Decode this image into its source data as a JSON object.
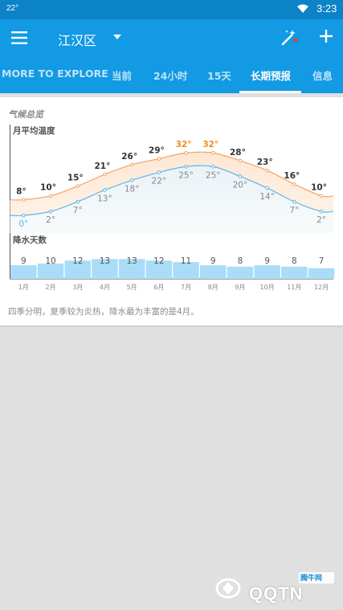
{
  "statusbar": {
    "temperature": "22°",
    "time": "3:23"
  },
  "appbar": {
    "city": "江汉区"
  },
  "tabs": [
    {
      "label": "MORE TO EXPLORE"
    },
    {
      "label": "当前"
    },
    {
      "label": "24小时"
    },
    {
      "label": "15天"
    },
    {
      "label": "长期预报",
      "active": true
    },
    {
      "label": "信息"
    }
  ],
  "card": {
    "title": "气候总览",
    "summary": "四季分明，夏季较为炎热，降水最为丰富的是4月。"
  },
  "chart_data": [
    {
      "type": "line",
      "title": "月平均温度",
      "categories": [
        "1月",
        "2月",
        "3月",
        "4月",
        "5月",
        "6月",
        "7月",
        "8月",
        "9月",
        "10月",
        "11月",
        "12月"
      ],
      "series": [
        {
          "values": [
            8,
            10,
            15,
            21,
            26,
            29,
            32,
            32,
            28,
            23,
            16,
            10
          ]
        },
        {
          "values": [
            0,
            2,
            7,
            13,
            18,
            22,
            25,
            25,
            20,
            14,
            7,
            2
          ]
        }
      ],
      "highlight_color": "#f08c1e",
      "high_color": "#f4a263",
      "low_color": "#5db6e8"
    },
    {
      "type": "bar",
      "title": "降水天数",
      "categories": [
        "1月",
        "2月",
        "3月",
        "4月",
        "5月",
        "6月",
        "7月",
        "8月",
        "9月",
        "10月",
        "11月",
        "12月"
      ],
      "values": [
        9,
        10,
        12,
        13,
        13,
        12,
        11,
        9,
        8,
        9,
        8,
        7
      ],
      "bar_color": "#aadcf7"
    }
  ],
  "watermark": {
    "text": "QQTN",
    "sub": "腾牛网"
  }
}
